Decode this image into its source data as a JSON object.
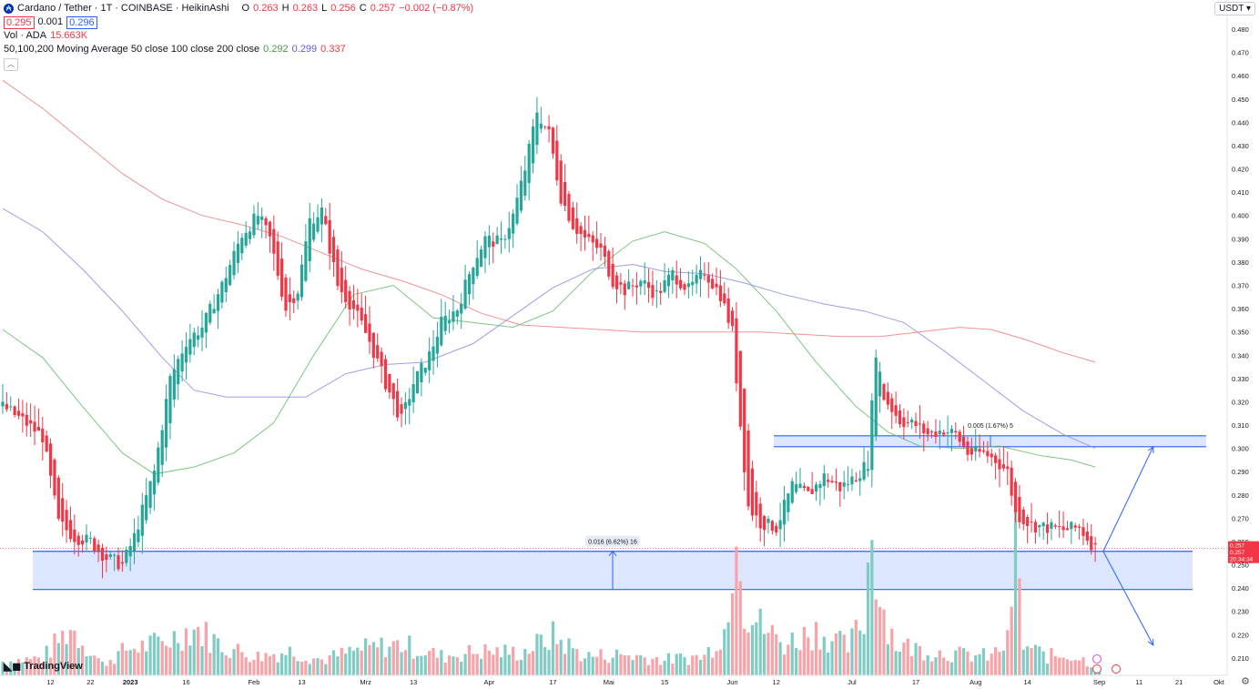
{
  "header": {
    "symbol": "Cardano / Tether · 1T · COINBASE · HeikinAshi",
    "o_label": "O",
    "o_value": "0.263",
    "h_label": "H",
    "h_value": "0.263",
    "l_label": "L",
    "l_value": "0.256",
    "c_label": "C",
    "c_value": "0.257",
    "change": "−0.002 (−0.87%)",
    "bid": "0.295",
    "spread": "0.001",
    "ask": "0.296",
    "vol_label": "Vol · ADA",
    "vol_value": "15.663K",
    "ma_label": "50,100,200 Moving Average 50 close 100 close 200 close",
    "ma50": "0.292",
    "ma100": "0.299",
    "ma200": "0.337",
    "collapse_icon": "chevron-up-icon"
  },
  "currency_button": "USDT",
  "brand": "TradingView",
  "colors": {
    "up": "#26a69a",
    "down": "#f23645",
    "ma50": "#66bb6a",
    "ma100": "#8c8ce6",
    "ma200": "#ef7f7f",
    "zone": "#2962ff",
    "vol_up": "#7fccc4",
    "vol_down": "#f7a3a8"
  },
  "chart_data": {
    "type": "candlestick",
    "price_axis": {
      "ylim": [
        0.2045,
        0.4847
      ],
      "ticks": [
        "0.480",
        "0.470",
        "0.460",
        "0.450",
        "0.440",
        "0.430",
        "0.420",
        "0.410",
        "0.400",
        "0.390",
        "0.380",
        "0.370",
        "0.360",
        "0.350",
        "0.340",
        "0.330",
        "0.320",
        "0.310",
        "0.300",
        "0.290",
        "0.280",
        "0.270",
        "0.260",
        "0.250",
        "0.240",
        "0.230",
        "0.220",
        "0.210"
      ]
    },
    "time_axis": {
      "ticks": [
        {
          "label": "12",
          "day": 12
        },
        {
          "label": "22",
          "day": 22
        },
        {
          "label": "2023",
          "day": 32,
          "bold": true
        },
        {
          "label": "16",
          "day": 46
        },
        {
          "label": "Feb",
          "day": 63
        },
        {
          "label": "13",
          "day": 75
        },
        {
          "label": "Mrz",
          "day": 91
        },
        {
          "label": "13",
          "day": 103
        },
        {
          "label": "Apr",
          "day": 122
        },
        {
          "label": "17",
          "day": 138
        },
        {
          "label": "Mai",
          "day": 152
        },
        {
          "label": "15",
          "day": 166
        },
        {
          "label": "Jun",
          "day": 183
        },
        {
          "label": "12",
          "day": 194
        },
        {
          "label": "Jul",
          "day": 213
        },
        {
          "label": "17",
          "day": 229
        },
        {
          "label": "Aug",
          "day": 244
        },
        {
          "label": "14",
          "day": 257
        },
        {
          "label": "Sep",
          "day": 275
        },
        {
          "label": "11",
          "day": 285
        },
        {
          "label": "21",
          "day": 295
        },
        {
          "label": "Okt",
          "day": 305
        }
      ]
    },
    "last_price_labels": [
      "0.257",
      "0.257",
      "20:34:34"
    ],
    "support_zone": {
      "top": 0.2558,
      "bottom": 0.2394,
      "measure_label": "0.016 (6.62%) 16"
    },
    "resistance_zone": {
      "top": 0.3054,
      "bottom": 0.3007,
      "measure_label": "0.005 (1.67%) 5"
    },
    "forecast_paths": [
      {
        "from_day": 276,
        "from": 0.2558,
        "to_day": 289,
        "to": 0.3007
      },
      {
        "from_day": 276,
        "from": 0.2558,
        "to_day": 289,
        "to": 0.2155
      }
    ],
    "close_anchors": [
      [
        0,
        0.318
      ],
      [
        5,
        0.312
      ],
      [
        10,
        0.305
      ],
      [
        14,
        0.268
      ],
      [
        18,
        0.262
      ],
      [
        22,
        0.26
      ],
      [
        26,
        0.253
      ],
      [
        30,
        0.25
      ],
      [
        33,
        0.262
      ],
      [
        38,
        0.29
      ],
      [
        42,
        0.33
      ],
      [
        46,
        0.346
      ],
      [
        50,
        0.352
      ],
      [
        55,
        0.37
      ],
      [
        60,
        0.392
      ],
      [
        64,
        0.4
      ],
      [
        67,
        0.39
      ],
      [
        71,
        0.36
      ],
      [
        74,
        0.368
      ],
      [
        77,
        0.398
      ],
      [
        80,
        0.402
      ],
      [
        84,
        0.37
      ],
      [
        88,
        0.36
      ],
      [
        92,
        0.346
      ],
      [
        96,
        0.328
      ],
      [
        100,
        0.312
      ],
      [
        103,
        0.328
      ],
      [
        107,
        0.34
      ],
      [
        110,
        0.354
      ],
      [
        114,
        0.36
      ],
      [
        118,
        0.38
      ],
      [
        121,
        0.39
      ],
      [
        125,
        0.388
      ],
      [
        128,
        0.4
      ],
      [
        131,
        0.42
      ],
      [
        134,
        0.445
      ],
      [
        137,
        0.435
      ],
      [
        140,
        0.408
      ],
      [
        143,
        0.396
      ],
      [
        146,
        0.39
      ],
      [
        150,
        0.385
      ],
      [
        153,
        0.372
      ],
      [
        156,
        0.368
      ],
      [
        160,
        0.372
      ],
      [
        164,
        0.366
      ],
      [
        168,
        0.375
      ],
      [
        172,
        0.368
      ],
      [
        176,
        0.376
      ],
      [
        180,
        0.366
      ],
      [
        183,
        0.35
      ],
      [
        185,
        0.31
      ],
      [
        187,
        0.275
      ],
      [
        190,
        0.268
      ],
      [
        194,
        0.266
      ],
      [
        198,
        0.284
      ],
      [
        202,
        0.28
      ],
      [
        206,
        0.288
      ],
      [
        210,
        0.283
      ],
      [
        214,
        0.288
      ],
      [
        217,
        0.294
      ],
      [
        219,
        0.342
      ],
      [
        221,
        0.322
      ],
      [
        225,
        0.312
      ],
      [
        229,
        0.31
      ],
      [
        232,
        0.306
      ],
      [
        236,
        0.308
      ],
      [
        239,
        0.306
      ],
      [
        242,
        0.298
      ],
      [
        246,
        0.298
      ],
      [
        249,
        0.295
      ],
      [
        252,
        0.29
      ],
      [
        254,
        0.272
      ],
      [
        258,
        0.267
      ],
      [
        262,
        0.266
      ],
      [
        266,
        0.265
      ],
      [
        270,
        0.266
      ],
      [
        274,
        0.257
      ]
    ],
    "volume_anchors": [
      [
        0,
        16
      ],
      [
        10,
        20
      ],
      [
        17,
        55
      ],
      [
        25,
        13
      ],
      [
        31,
        30
      ],
      [
        40,
        38
      ],
      [
        48,
        55
      ],
      [
        56,
        32
      ],
      [
        64,
        22
      ],
      [
        72,
        28
      ],
      [
        80,
        18
      ],
      [
        90,
        30
      ],
      [
        100,
        36
      ],
      [
        110,
        22
      ],
      [
        120,
        28
      ],
      [
        130,
        26
      ],
      [
        138,
        45
      ],
      [
        146,
        22
      ],
      [
        156,
        24
      ],
      [
        166,
        18
      ],
      [
        176,
        22
      ],
      [
        182,
        60
      ],
      [
        184,
        230
      ],
      [
        186,
        80
      ],
      [
        190,
        58
      ],
      [
        196,
        36
      ],
      [
        204,
        52
      ],
      [
        212,
        32
      ],
      [
        216,
        66
      ],
      [
        218,
        180
      ],
      [
        220,
        88
      ],
      [
        224,
        36
      ],
      [
        232,
        28
      ],
      [
        240,
        24
      ],
      [
        248,
        22
      ],
      [
        252,
        38
      ],
      [
        254,
        150
      ],
      [
        256,
        34
      ],
      [
        262,
        22
      ],
      [
        268,
        24
      ],
      [
        274,
        12
      ]
    ],
    "ma_series": [
      {
        "name": "50 close",
        "color": "#66bb6a",
        "values": [
          [
            0,
            0.351
          ],
          [
            10,
            0.339
          ],
          [
            20,
            0.318
          ],
          [
            30,
            0.298
          ],
          [
            38,
            0.289
          ],
          [
            48,
            0.292
          ],
          [
            58,
            0.298
          ],
          [
            68,
            0.311
          ],
          [
            78,
            0.34
          ],
          [
            88,
            0.366
          ],
          [
            98,
            0.37
          ],
          [
            108,
            0.356
          ],
          [
            118,
            0.354
          ],
          [
            128,
            0.352
          ],
          [
            138,
            0.359
          ],
          [
            148,
            0.376
          ],
          [
            158,
            0.389
          ],
          [
            166,
            0.393
          ],
          [
            176,
            0.388
          ],
          [
            184,
            0.377
          ],
          [
            194,
            0.359
          ],
          [
            204,
            0.337
          ],
          [
            214,
            0.318
          ],
          [
            222,
            0.307
          ],
          [
            230,
            0.301
          ],
          [
            240,
            0.3
          ],
          [
            250,
            0.301
          ],
          [
            260,
            0.297
          ],
          [
            268,
            0.295
          ],
          [
            274,
            0.292
          ]
        ]
      },
      {
        "name": "100 close",
        "color": "#8c8ce6",
        "values": [
          [
            0,
            0.403
          ],
          [
            10,
            0.393
          ],
          [
            20,
            0.377
          ],
          [
            30,
            0.359
          ],
          [
            40,
            0.339
          ],
          [
            48,
            0.325
          ],
          [
            56,
            0.322
          ],
          [
            66,
            0.322
          ],
          [
            76,
            0.322
          ],
          [
            86,
            0.332
          ],
          [
            96,
            0.336
          ],
          [
            106,
            0.337
          ],
          [
            118,
            0.345
          ],
          [
            128,
            0.357
          ],
          [
            138,
            0.369
          ],
          [
            148,
            0.377
          ],
          [
            158,
            0.379
          ],
          [
            166,
            0.376
          ],
          [
            176,
            0.375
          ],
          [
            186,
            0.371
          ],
          [
            196,
            0.366
          ],
          [
            206,
            0.362
          ],
          [
            216,
            0.359
          ],
          [
            226,
            0.354
          ],
          [
            236,
            0.342
          ],
          [
            246,
            0.329
          ],
          [
            256,
            0.316
          ],
          [
            266,
            0.306
          ],
          [
            274,
            0.3
          ]
        ]
      },
      {
        "name": "200 close",
        "color": "#ef7f7f",
        "values": [
          [
            0,
            0.458
          ],
          [
            10,
            0.446
          ],
          [
            20,
            0.432
          ],
          [
            30,
            0.418
          ],
          [
            40,
            0.407
          ],
          [
            50,
            0.4
          ],
          [
            60,
            0.396
          ],
          [
            70,
            0.391
          ],
          [
            80,
            0.384
          ],
          [
            90,
            0.377
          ],
          [
            100,
            0.372
          ],
          [
            110,
            0.366
          ],
          [
            120,
            0.358
          ],
          [
            130,
            0.353
          ],
          [
            140,
            0.352
          ],
          [
            150,
            0.351
          ],
          [
            160,
            0.35
          ],
          [
            170,
            0.35
          ],
          [
            180,
            0.35
          ],
          [
            190,
            0.35
          ],
          [
            200,
            0.349
          ],
          [
            210,
            0.348
          ],
          [
            220,
            0.348
          ],
          [
            230,
            0.35
          ],
          [
            240,
            0.352
          ],
          [
            248,
            0.351
          ],
          [
            256,
            0.347
          ],
          [
            266,
            0.341
          ],
          [
            274,
            0.337
          ]
        ]
      }
    ]
  }
}
